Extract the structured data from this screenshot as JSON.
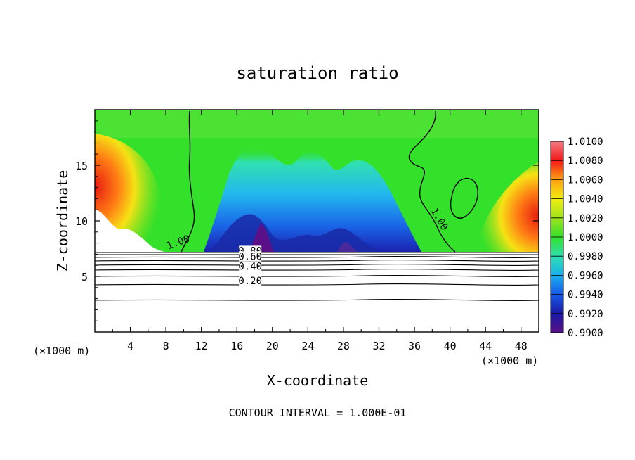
{
  "chart_data": {
    "type": "heatmap",
    "title": "saturation ratio",
    "xlabel": "X-coordinate",
    "ylabel": "Z-coordinate",
    "x_unit": "(×1000 m)",
    "x_unit_right": "(×1000 m)",
    "xlim": [
      0,
      50
    ],
    "ylim": [
      0,
      20
    ],
    "x_ticks": [
      "4",
      "8",
      "12",
      "16",
      "20",
      "24",
      "28",
      "32",
      "36",
      "40",
      "44",
      "48"
    ],
    "y_ticks": [
      "5",
      "10",
      "15"
    ],
    "footer": "CONTOUR INTERVAL = 1.000E-01",
    "colorbar": {
      "min": 0.99,
      "max": 1.01,
      "tick_labels": [
        "1.0100",
        "1.0080",
        "1.0060",
        "1.0040",
        "1.0020",
        "1.0000",
        "0.9980",
        "0.9960",
        "0.9940",
        "0.9920",
        "0.9900"
      ]
    },
    "contour_labels": [
      {
        "text": "1.00",
        "x": 9.5,
        "z": 7.8
      },
      {
        "text": "1.00",
        "x": 38.5,
        "z": 10.0
      },
      {
        "text": "0.80",
        "x": 17.5,
        "z": 7.0
      },
      {
        "text": "0.60",
        "x": 17.5,
        "z": 6.5
      },
      {
        "text": "0.40",
        "x": 17.5,
        "z": 5.6
      },
      {
        "text": "0.20",
        "x": 17.5,
        "z": 4.3
      }
    ]
  }
}
